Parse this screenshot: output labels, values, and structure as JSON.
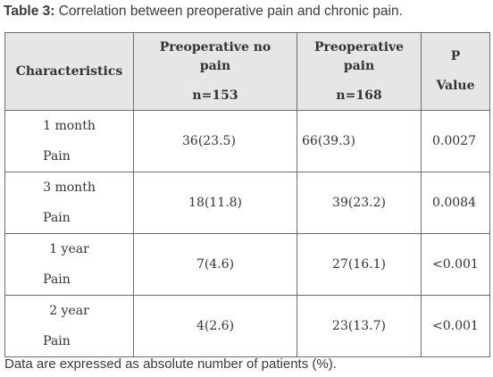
{
  "caption": {
    "label": "Table 3:",
    "text": " Correlation between preoperative pain and chronic pain."
  },
  "table": {
    "headers": {
      "characteristics": "Characteristics",
      "no_pain_line1": "Preoperative no",
      "no_pain_line2": "pain",
      "no_pain_n": "n=153",
      "pain_line1": "Preoperative",
      "pain_line2": "pain",
      "pain_n": "n=168",
      "p_line1": "P",
      "p_line2": "Value"
    },
    "rows": [
      {
        "period": "1 month",
        "measure": "Pain",
        "no_pain": "36(23.5)",
        "pain": "66(39.3)",
        "p_value": "0.0027"
      },
      {
        "period": "3 month",
        "measure": "Pain",
        "no_pain": "18(11.8)",
        "pain": "39(23.2)",
        "p_value": "0.0084"
      },
      {
        "period": "1 year",
        "measure": "Pain",
        "no_pain": "7(4.6)",
        "pain": "27(16.1)",
        "p_value": "<0.001"
      },
      {
        "period": "2 year",
        "measure": "Pain",
        "no_pain": "4(2.6)",
        "pain": "23(13.7)",
        "p_value": "<0.001"
      }
    ]
  },
  "footer": {
    "note": "Data are expressed as absolute number of patients (%)."
  }
}
